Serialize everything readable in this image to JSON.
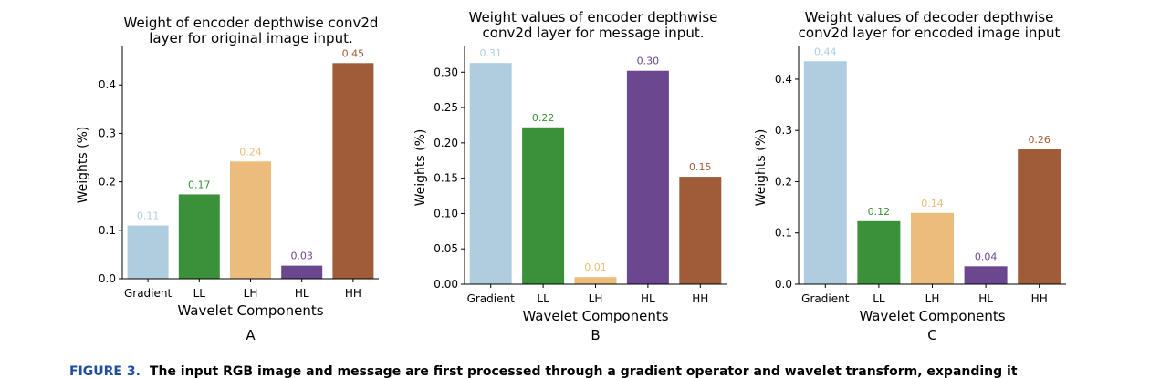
{
  "chart_data": [
    {
      "type": "bar",
      "panel_label": "A",
      "title_lines": [
        "Weight of encoder depthwise conv2d",
        "layer for original image input."
      ],
      "xlabel": "Wavelet Components",
      "ylabel": "Weights (%)",
      "categories": [
        "Gradient",
        "LL",
        "LH",
        "HL",
        "HH"
      ],
      "values": [
        0.11,
        0.174,
        0.242,
        0.027,
        0.445
      ],
      "value_labels": [
        "0.11",
        "0.17",
        "0.24",
        "0.03",
        "0.45"
      ],
      "ylim": [
        0,
        0.47
      ],
      "yticks": [
        0.0,
        0.1,
        0.2,
        0.3,
        0.4
      ],
      "ytick_labels": [
        "0.0",
        "0.1",
        "0.2",
        "0.3",
        "0.4"
      ]
    },
    {
      "type": "bar",
      "panel_label": "B",
      "title_lines": [
        "Weight values of encoder  depthwise",
        "conv2d  layer for message input."
      ],
      "xlabel": "Wavelet Components",
      "ylabel": "Weights (%)",
      "categories": [
        "Gradient",
        "LL",
        "LH",
        "HL",
        "HH"
      ],
      "values": [
        0.313,
        0.222,
        0.01,
        0.302,
        0.152
      ],
      "value_labels": [
        "0.31",
        "0.22",
        "0.01",
        "0.30",
        "0.15"
      ],
      "ylim": [
        0,
        0.33
      ],
      "yticks": [
        0.0,
        0.05,
        0.1,
        0.15,
        0.2,
        0.25,
        0.3
      ],
      "ytick_labels": [
        "0.00",
        "0.05",
        "0.10",
        "0.15",
        "0.20",
        "0.25",
        "0.30"
      ]
    },
    {
      "type": "bar",
      "panel_label": "C",
      "title_lines": [
        "Weight values of decoder depthwise",
        "conv2d  layer for encoded image input"
      ],
      "xlabel": "Wavelet Components",
      "ylabel": "Weights (%)",
      "categories": [
        "Gradient",
        "LL",
        "LH",
        "HL",
        "HH"
      ],
      "values": [
        0.435,
        0.123,
        0.139,
        0.035,
        0.263
      ],
      "value_labels": [
        "0.44",
        "0.12",
        "0.14",
        "0.04",
        "0.26"
      ],
      "ylim": [
        0,
        0.455
      ],
      "yticks": [
        0.0,
        0.1,
        0.2,
        0.3,
        0.4
      ],
      "ytick_labels": [
        "0.0",
        "0.1",
        "0.2",
        "0.3",
        "0.4"
      ]
    }
  ],
  "colors": {
    "bars": [
      "#b0cde0",
      "#3b9139",
      "#ebbc7c",
      "#6b478f",
      "#a05c38"
    ],
    "axis": "#000000"
  },
  "caption": {
    "label": "FIGURE 3.",
    "text": "The input RGB image and message are first processed through a gradient operator and wavelet transform, expanding it"
  }
}
